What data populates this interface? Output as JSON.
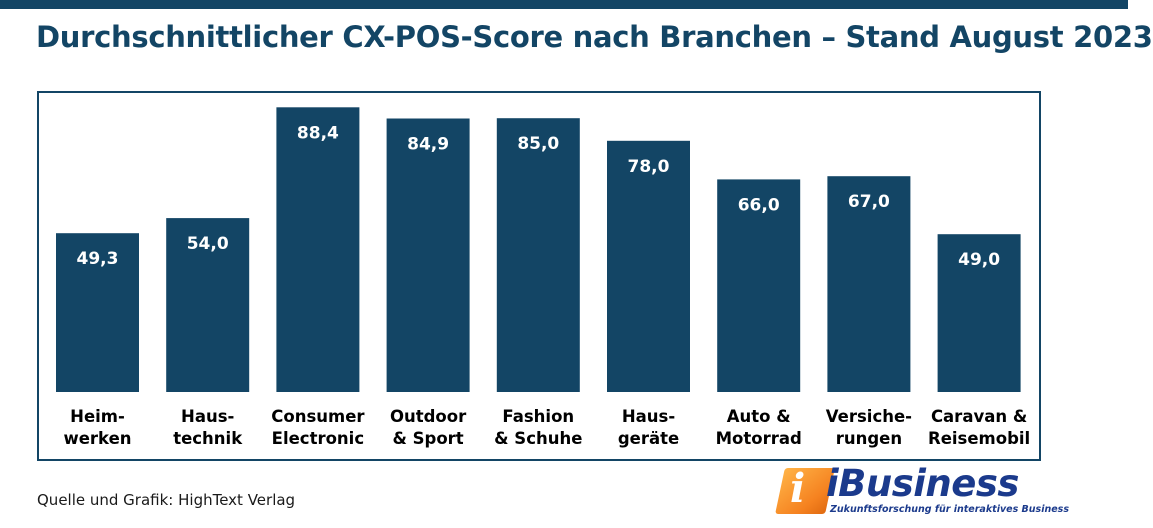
{
  "header": {
    "title": "Durchschnittlicher CX-POS-Score nach Branchen – Stand August 2023"
  },
  "footer": {
    "source": "Quelle und Grafik: HighText Verlag"
  },
  "logo": {
    "mark": "i",
    "name": "iBusiness",
    "tagline": "Zukunftsforschung für interaktives Business"
  },
  "colors": {
    "bar": "#134565",
    "frame": "#134565",
    "value_label": "#ffffff",
    "category_label": "#000000",
    "logo_orange": "#f58220",
    "logo_blue": "#1b3a8c"
  },
  "chart_data": {
    "type": "bar",
    "title": "Durchschnittlicher CX-POS-Score nach Branchen – Stand August 2023",
    "xlabel": "",
    "ylabel": "",
    "ylim": [
      0,
      95
    ],
    "grid": false,
    "legend": "none",
    "categories": [
      [
        "Heim-",
        "werken"
      ],
      [
        "Haus-",
        "technik"
      ],
      [
        "Consumer",
        "Electronic"
      ],
      [
        "Outdoor",
        "& Sport"
      ],
      [
        "Fashion",
        "& Schuhe"
      ],
      [
        "Haus-",
        "geräte"
      ],
      [
        "Auto &",
        "Motorrad"
      ],
      [
        "Versiche-",
        "rungen"
      ],
      [
        "Caravan &",
        "Reisemobil"
      ]
    ],
    "values": [
      49.3,
      54.0,
      88.4,
      84.9,
      85.0,
      78.0,
      66.0,
      67.0,
      49.0
    ],
    "value_labels": [
      "49,3",
      "54,0",
      "88,4",
      "84,9",
      "85,0",
      "78,0",
      "66,0",
      "67,0",
      "49,0"
    ]
  }
}
